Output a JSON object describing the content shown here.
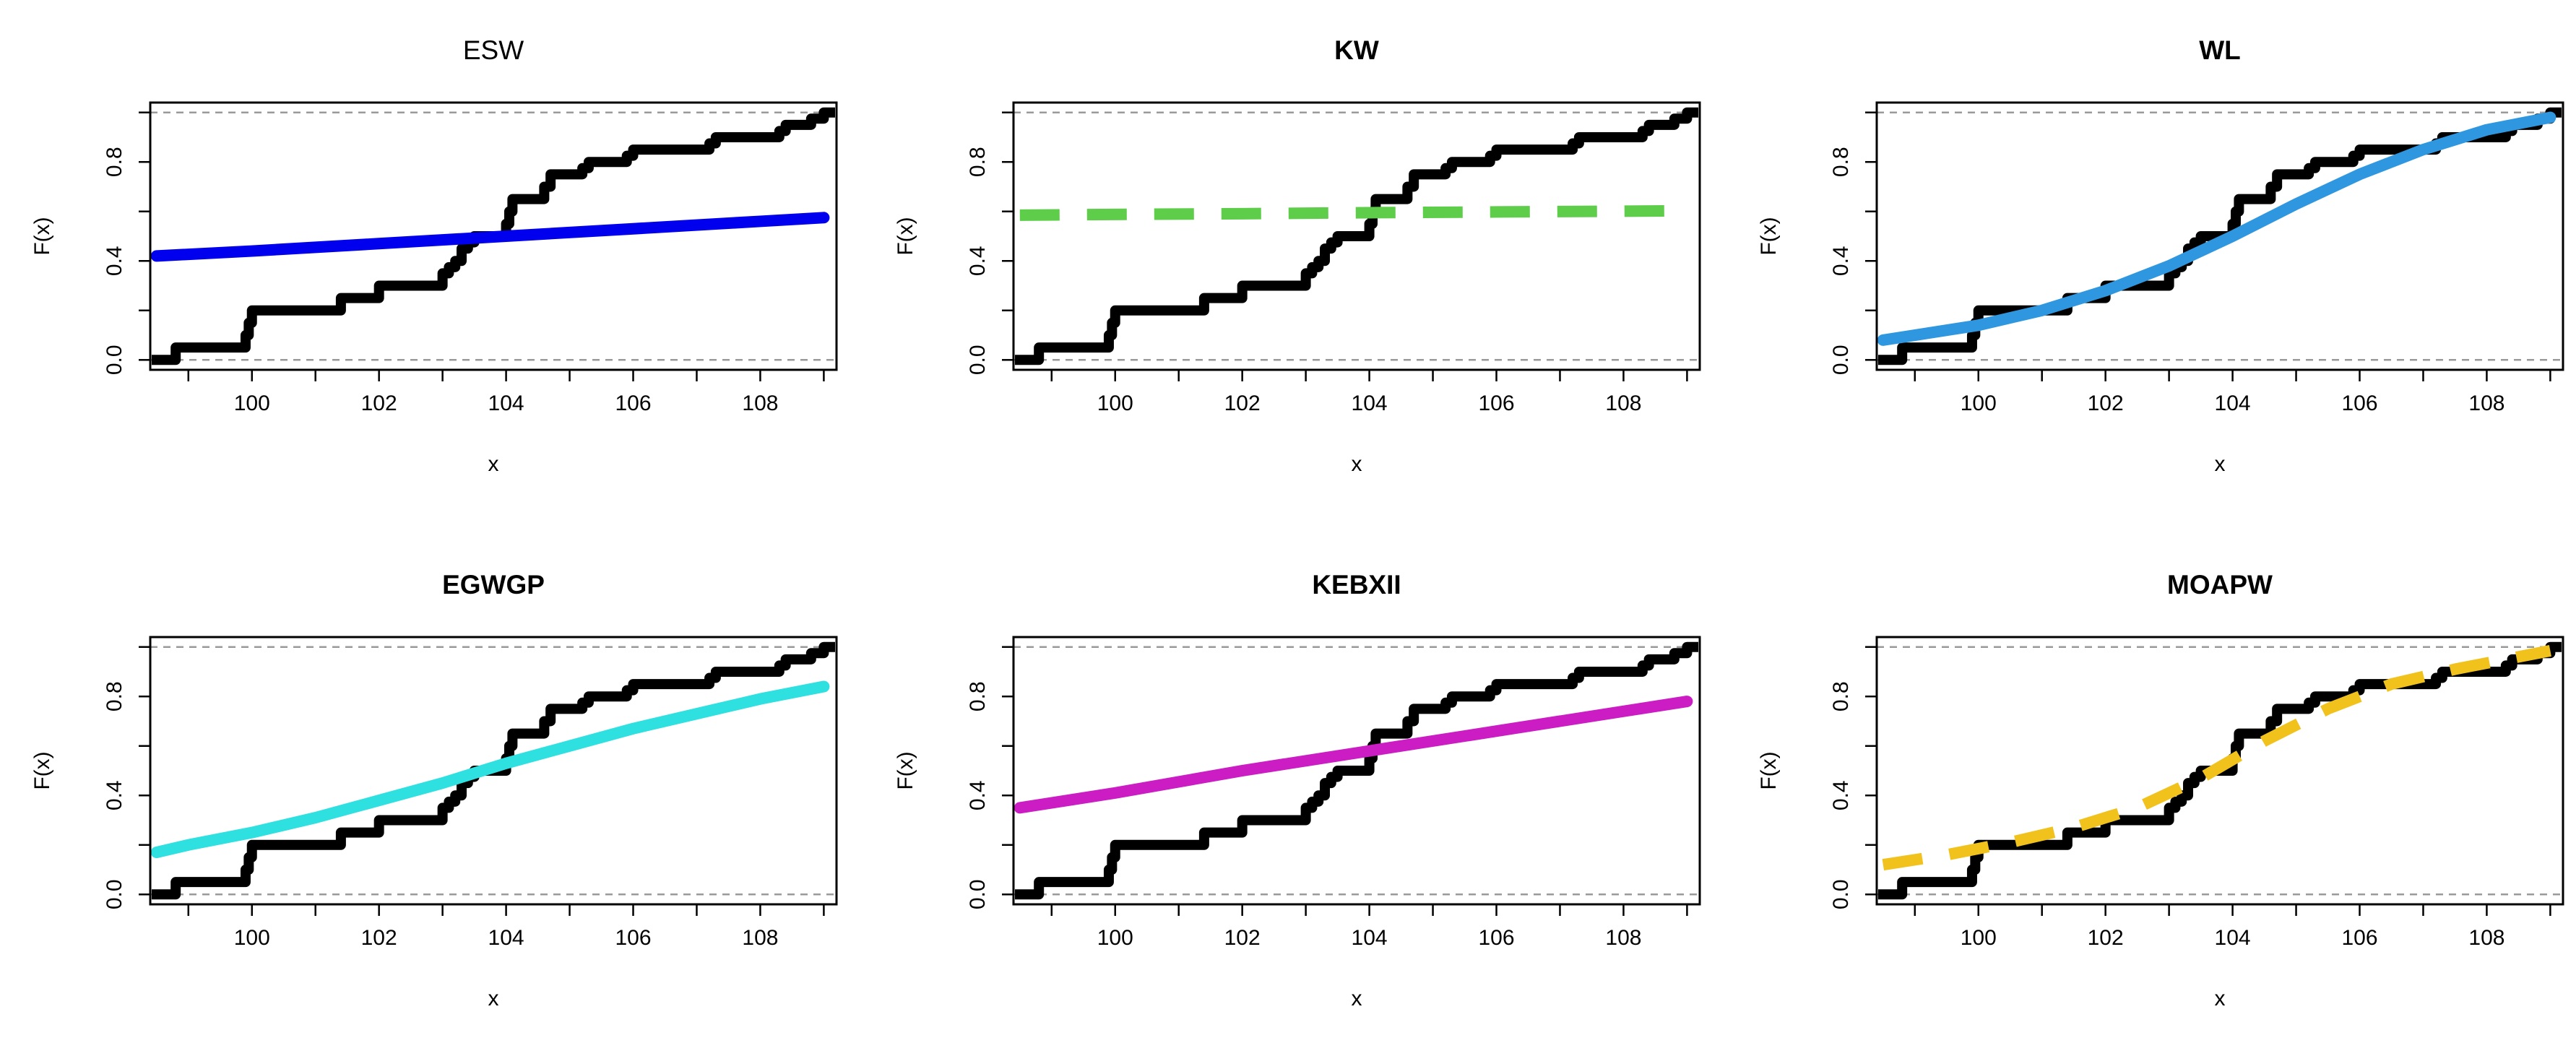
{
  "figure": {
    "kind": "Empirical CDF vs fitted model CDF",
    "panel_layout": "2 rows x 3 columns"
  },
  "chart_data": [
    {
      "type": "line",
      "title": "ESW",
      "title_weight": "normal",
      "xlabel": "x",
      "ylabel": "F(x)",
      "xlim": [
        98.4,
        109.2
      ],
      "ylim": [
        0,
        1
      ],
      "xticks": [
        "100",
        "102",
        "104",
        "106",
        "108"
      ],
      "yticks": [
        "0.0",
        "0.4",
        "0.8"
      ],
      "series": [
        {
          "name": "ESW",
          "color": "#0000ee",
          "style": "solid",
          "x": [
            98.5,
            100,
            102,
            104,
            106,
            108,
            109
          ],
          "values": [
            0.42,
            0.44,
            0.47,
            0.5,
            0.53,
            0.56,
            0.575
          ]
        }
      ]
    },
    {
      "type": "line",
      "title": "KW",
      "title_weight": "bold",
      "xlabel": "x",
      "ylabel": "F(x)",
      "xlim": [
        98.4,
        109.2
      ],
      "ylim": [
        0,
        1
      ],
      "xticks": [
        "100",
        "102",
        "104",
        "106",
        "108"
      ],
      "yticks": [
        "0.0",
        "0.4",
        "0.8"
      ],
      "series": [
        {
          "name": "KW",
          "color": "#5dcd4a",
          "style": "dashed",
          "x": [
            98.5,
            100,
            102,
            104,
            106,
            108,
            109
          ],
          "values": [
            0.585,
            0.588,
            0.591,
            0.595,
            0.598,
            0.601,
            0.603
          ]
        }
      ]
    },
    {
      "type": "line",
      "title": "WL",
      "title_weight": "bold",
      "xlabel": "x",
      "ylabel": "F(x)",
      "xlim": [
        98.4,
        109.2
      ],
      "ylim": [
        0,
        1
      ],
      "xticks": [
        "100",
        "102",
        "104",
        "106",
        "108"
      ],
      "yticks": [
        "0.0",
        "0.4",
        "0.8"
      ],
      "series": [
        {
          "name": "WL",
          "color": "#2e97e0",
          "style": "solid",
          "x": [
            98.5,
            99,
            100,
            101,
            102,
            103,
            104,
            105,
            106,
            107,
            108,
            109
          ],
          "values": [
            0.08,
            0.1,
            0.14,
            0.2,
            0.28,
            0.38,
            0.5,
            0.63,
            0.75,
            0.85,
            0.93,
            0.98
          ]
        }
      ]
    },
    {
      "type": "line",
      "title": "EGWGP",
      "title_weight": "bold",
      "xlabel": "x",
      "ylabel": "F(x)",
      "xlim": [
        98.4,
        109.2
      ],
      "ylim": [
        0,
        1
      ],
      "xticks": [
        "100",
        "102",
        "104",
        "106",
        "108"
      ],
      "yticks": [
        "0.0",
        "0.4",
        "0.8"
      ],
      "series": [
        {
          "name": "EGWGP",
          "color": "#2ee0e0",
          "style": "solid",
          "x": [
            98.5,
            99,
            100,
            101,
            102,
            103,
            104,
            105,
            106,
            107,
            108,
            109
          ],
          "values": [
            0.17,
            0.2,
            0.25,
            0.31,
            0.38,
            0.45,
            0.53,
            0.6,
            0.67,
            0.73,
            0.79,
            0.84
          ]
        }
      ]
    },
    {
      "type": "line",
      "title": "KEBXII",
      "title_weight": "bold",
      "xlabel": "x",
      "ylabel": "F(x)",
      "xlim": [
        98.4,
        109.2
      ],
      "ylim": [
        0,
        1
      ],
      "xticks": [
        "100",
        "102",
        "104",
        "106",
        "108"
      ],
      "yticks": [
        "0.0",
        "0.4",
        "0.8"
      ],
      "series": [
        {
          "name": "KEBXII",
          "color": "#cc1cc4",
          "style": "solid",
          "x": [
            98.5,
            100,
            102,
            104,
            106,
            108,
            109
          ],
          "values": [
            0.35,
            0.41,
            0.5,
            0.58,
            0.66,
            0.74,
            0.78
          ]
        }
      ]
    },
    {
      "type": "line",
      "title": "MOAPW",
      "title_weight": "bold",
      "xlabel": "x",
      "ylabel": "F(x)",
      "xlim": [
        98.4,
        109.2
      ],
      "ylim": [
        0,
        1
      ],
      "xticks": [
        "100",
        "102",
        "104",
        "106",
        "108"
      ],
      "yticks": [
        "0.0",
        "0.4",
        "0.8"
      ],
      "series": [
        {
          "name": "MOAPW",
          "color": "#f0c21b",
          "style": "dashed",
          "x": [
            98.5,
            99.5,
            100.5,
            101.5,
            102.5,
            103.5,
            104.5,
            105.5,
            106.5,
            107.5,
            108.5,
            109
          ],
          "values": [
            0.12,
            0.16,
            0.21,
            0.27,
            0.35,
            0.47,
            0.62,
            0.75,
            0.85,
            0.91,
            0.96,
            0.985
          ]
        }
      ]
    }
  ],
  "ecdf": {
    "name": "Empirical CDF",
    "color": "#000000",
    "x": [
      98.8,
      99.9,
      99.95,
      100,
      101.4,
      101.5,
      102,
      103,
      103.1,
      103.2,
      103.3,
      103.4,
      103.5,
      104,
      104.05,
      104.1,
      104.6,
      104.7,
      105.2,
      105.3,
      105.9,
      106,
      107.2,
      107.3,
      108.3,
      108.4,
      108.8,
      109
    ],
    "cdf": [
      0.05,
      0.1,
      0.15,
      0.2,
      0.25,
      0.25,
      0.3,
      0.35,
      0.375,
      0.4,
      0.45,
      0.475,
      0.5,
      0.55,
      0.6,
      0.65,
      0.7,
      0.75,
      0.775,
      0.8,
      0.825,
      0.85,
      0.875,
      0.9,
      0.925,
      0.95,
      0.975,
      1.0
    ]
  }
}
